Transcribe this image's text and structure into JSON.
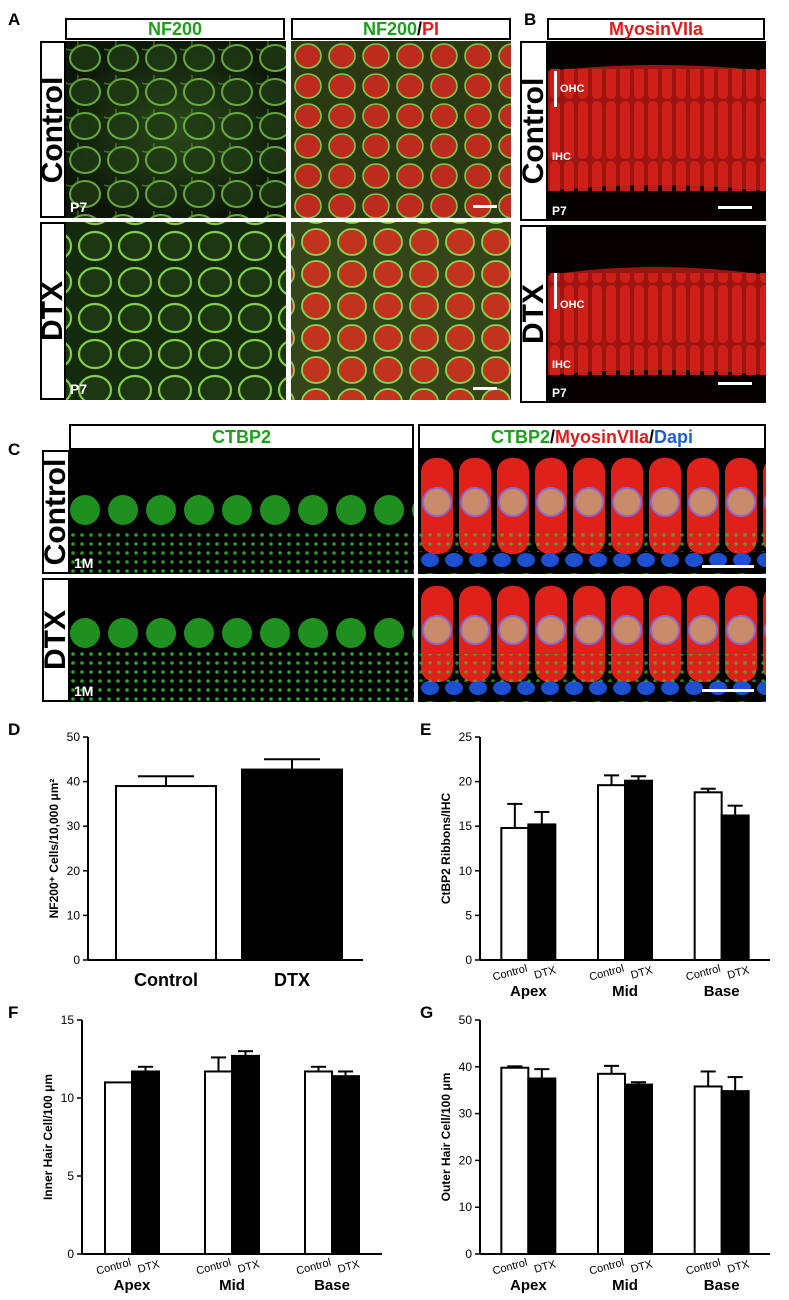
{
  "panels": {
    "A": {
      "letter": "A",
      "headers": [
        "NF200",
        "NF200",
        "/",
        "PI"
      ],
      "rows": [
        "Control",
        "DTX"
      ],
      "age": "P7"
    },
    "B": {
      "letter": "B",
      "header": "MyosinVIIa",
      "rows": [
        "Control",
        "DTX"
      ],
      "age": "P7",
      "ohc": "OHC",
      "ihc": "IHC"
    },
    "C": {
      "letter": "C",
      "header_left": "CTBP2",
      "header_right": [
        "CTBP2",
        "/",
        "MyosinVIIa",
        "/",
        "Dapi"
      ],
      "rows": [
        "Control",
        "DTX"
      ],
      "age": "1M"
    }
  },
  "chart_data": [
    {
      "panel": "D",
      "type": "bar",
      "categories": [
        "Control",
        "DTX"
      ],
      "values": [
        39,
        42.7
      ],
      "errors": [
        2.2,
        2.3
      ],
      "fills": [
        "#ffffff",
        "#000000"
      ],
      "ylabel": "NF200⁺ Cells/10,000 μm²",
      "ylim": [
        0,
        50
      ],
      "yticks": [
        0,
        10,
        20,
        30,
        40,
        50
      ]
    },
    {
      "panel": "E",
      "type": "bar",
      "groups": [
        "Apex",
        "Mid",
        "Base"
      ],
      "bar_labels": [
        "Control",
        "DTX"
      ],
      "series": [
        {
          "values": [
            14.8,
            19.6,
            18.8
          ],
          "errors": [
            2.7,
            1.1,
            0.4
          ],
          "fill": "#ffffff"
        },
        {
          "values": [
            15.2,
            20.1,
            16.2
          ],
          "errors": [
            1.4,
            0.5,
            1.1
          ],
          "fill": "#000000"
        }
      ],
      "ylabel": "CtBP2 Ribbons/IHC",
      "ylim": [
        0,
        25
      ],
      "yticks": [
        0,
        5,
        10,
        15,
        20,
        25
      ]
    },
    {
      "panel": "F",
      "type": "bar",
      "groups": [
        "Apex",
        "Mid",
        "Base"
      ],
      "bar_labels": [
        "Control",
        "DTX"
      ],
      "series": [
        {
          "values": [
            11.0,
            11.7,
            11.7
          ],
          "errors": [
            0,
            0.9,
            0.3
          ],
          "fill": "#ffffff"
        },
        {
          "values": [
            11.7,
            12.7,
            11.4
          ],
          "errors": [
            0.3,
            0.3,
            0.3
          ],
          "fill": "#000000"
        }
      ],
      "ylabel": "Inner Hair Cell/100 μm",
      "ylim": [
        0,
        15
      ],
      "yticks": [
        0,
        5,
        10,
        15
      ]
    },
    {
      "panel": "G",
      "type": "bar",
      "groups": [
        "Apex",
        "Mid",
        "Base"
      ],
      "bar_labels": [
        "Control",
        "DTX"
      ],
      "series": [
        {
          "values": [
            39.8,
            38.5,
            35.8
          ],
          "errors": [
            0.3,
            1.7,
            3.2
          ],
          "fill": "#ffffff"
        },
        {
          "values": [
            37.5,
            36.2,
            34.8
          ],
          "errors": [
            2.0,
            0.5,
            3.0
          ],
          "fill": "#000000"
        }
      ],
      "ylabel": "Outer Hair Cell/100 μm",
      "ylim": [
        0,
        50
      ],
      "yticks": [
        0,
        10,
        20,
        30,
        40,
        50
      ]
    }
  ]
}
